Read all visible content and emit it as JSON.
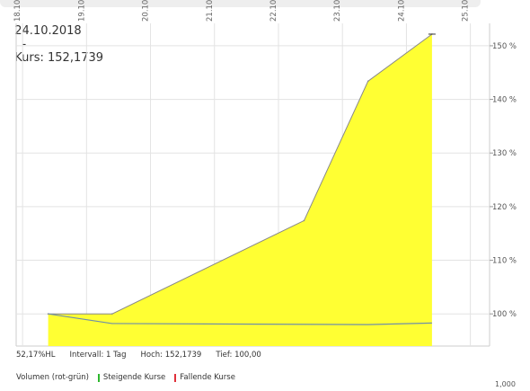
{
  "header": {
    "date": "24.10.2018",
    "separator": "-",
    "kurs_text": "Kurs: 152,1739"
  },
  "info": {
    "hl": "52,17%HL",
    "interval": "Intervall: 1 Tag",
    "high": "Hoch: 152,1739",
    "low": "Tief:  100,00"
  },
  "legend": {
    "volume_label": "Volumen (rot-grün)",
    "rising": "Steigende Kurse",
    "falling": "Fallende Kurse",
    "rising_color": "#2eb82e",
    "falling_color": "#e0303a"
  },
  "volume_axis": {
    "tick": "1,000"
  },
  "chart_data": {
    "type": "area",
    "title": "",
    "xlabel": "",
    "ylabel": "",
    "x_ticks": [
      "18.10.",
      "19.10.",
      "20.10.",
      "21.10.",
      "22.10.",
      "23.10.",
      "24.10.",
      "25.10."
    ],
    "y_ticks": [
      {
        "value": 100,
        "label": "100 %"
      },
      {
        "value": 110,
        "label": "110 %"
      },
      {
        "value": 120,
        "label": "120 %"
      },
      {
        "value": 130,
        "label": "130 %"
      },
      {
        "value": 140,
        "label": "140 %"
      },
      {
        "value": 150,
        "label": "150 %"
      }
    ],
    "ylim": [
      94,
      152.5
    ],
    "xlim": [
      17.9,
      25.3
    ],
    "grid": true,
    "fill_color": "#ffff33",
    "line_color": "#888888",
    "series": [
      {
        "x": [
          18.4,
          19.4,
          22.4,
          23.4,
          24.4
        ],
        "values": [
          100,
          100,
          117.4,
          143.4,
          152.17
        ]
      }
    ],
    "secondary_line": {
      "color": "#6f8fa8",
      "x": [
        18.4,
        19.4,
        23.4,
        24.4
      ],
      "values": [
        100,
        98.2,
        98.0,
        98.3
      ]
    }
  }
}
